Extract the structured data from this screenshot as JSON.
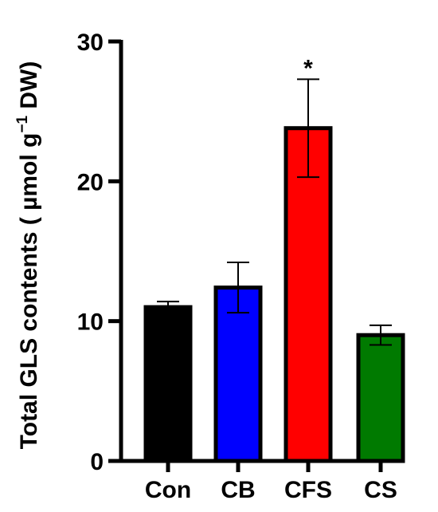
{
  "chart_data": {
    "type": "bar",
    "categories": [
      "Con",
      "CB",
      "CFS",
      "CS"
    ],
    "values": [
      11.0,
      12.4,
      23.8,
      9.0
    ],
    "errors": [
      0.4,
      1.8,
      3.5,
      0.7
    ],
    "colors": [
      "#000000",
      "#0000ff",
      "#ff0000",
      "#007a00"
    ],
    "significance": [
      "",
      "",
      "*",
      ""
    ],
    "ylabel_main": "Total GLS contents ( µmol g",
    "ylabel_sup": "−1",
    "ylabel_tail": " DW)",
    "yticks": [
      "0",
      "10",
      "20",
      "30"
    ],
    "ytick_values": [
      0,
      10,
      20,
      30
    ],
    "ylim": [
      0,
      30
    ],
    "grid": false,
    "legend": "none"
  }
}
